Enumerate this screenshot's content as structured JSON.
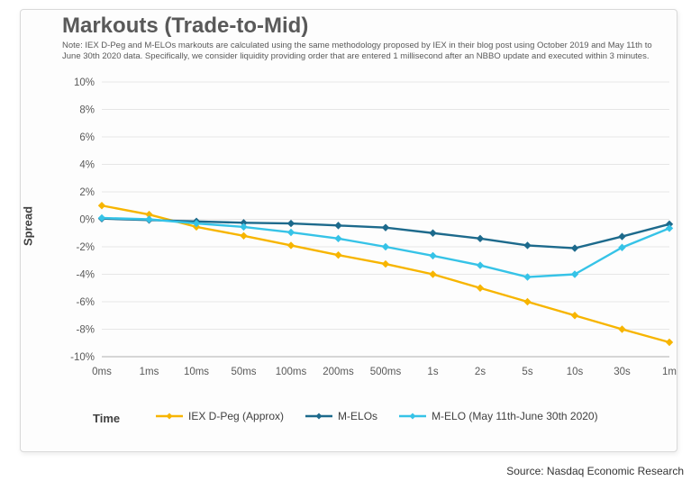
{
  "title": "Markouts (Trade-to-Mid)",
  "note": "Note: IEX D-Peg and M-ELOs markouts are calculated using the same methodology proposed by IEX in their blog post using October 2019 and May 11th to June 30th 2020 data. Specifically, we consider liquidity providing order that are entered 1 millisecond after an NBBO update and executed within 3 minutes.",
  "ylabel": "Spread",
  "xlabel": "Time",
  "source": "Source: Nasdaq Economic Research",
  "chart": {
    "type": "line",
    "background_color": "#fdfdfd",
    "grid_color": "#e6e6e6",
    "axis_color": "#bfbfbf",
    "tick_fontsize": 11.5,
    "tick_color": "#595959",
    "title_fontsize": 24,
    "ylim": [
      -10,
      10
    ],
    "ytick_step": 2,
    "ytick_suffix": "%",
    "categories": [
      "0ms",
      "1ms",
      "10ms",
      "50ms",
      "100ms",
      "200ms",
      "500ms",
      "1s",
      "2s",
      "5s",
      "10s",
      "30s",
      "1m"
    ],
    "marker": "diamond",
    "marker_size": 7,
    "line_width": 2.4,
    "series": [
      {
        "name": "IEX D-Peg (Approx)",
        "color": "#f7b500",
        "values": [
          1.0,
          0.35,
          -0.55,
          -1.2,
          -1.9,
          -2.6,
          -3.25,
          -4.0,
          -5.0,
          -6.0,
          -7.0,
          -8.0,
          -8.95
        ]
      },
      {
        "name": "M-ELOs",
        "color": "#1d6a8c",
        "values": [
          0.05,
          -0.05,
          -0.15,
          -0.25,
          -0.3,
          -0.45,
          -0.6,
          -1.0,
          -1.4,
          -1.9,
          -2.1,
          -1.25,
          -0.35
        ]
      },
      {
        "name": "M-ELO (May 11th-June 30th 2020)",
        "color": "#36c3e7",
        "values": [
          0.1,
          0.0,
          -0.3,
          -0.55,
          -0.95,
          -1.4,
          -2.0,
          -2.65,
          -3.35,
          -4.2,
          -4.0,
          -2.05,
          -0.65
        ]
      }
    ]
  },
  "legend": {
    "items": [
      {
        "label": "IEX D-Peg (Approx)",
        "color": "#f7b500"
      },
      {
        "label": "M-ELOs",
        "color": "#1d6a8c"
      },
      {
        "label": "M-ELO (May 11th-June 30th 2020)",
        "color": "#36c3e7"
      }
    ]
  }
}
